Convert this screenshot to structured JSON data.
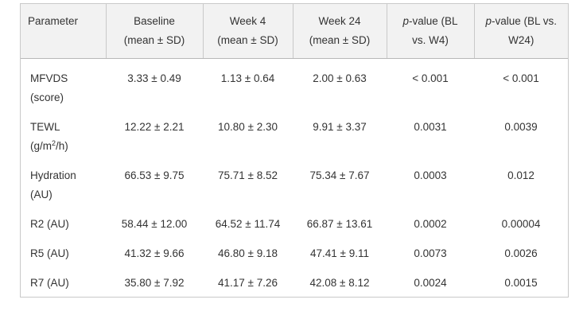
{
  "table": {
    "headers": [
      {
        "line1": "Parameter",
        "line2": ""
      },
      {
        "line1": "Baseline",
        "line2": "(mean ± SD)"
      },
      {
        "line1": "Week 4",
        "line2": "(mean ± SD)"
      },
      {
        "line1": "Week 24",
        "line2": "(mean ± SD)"
      },
      {
        "italic": "p",
        "line1": "-value (BL",
        "line2": "vs. W4)"
      },
      {
        "italic": "p",
        "line1": "-value (BL vs.",
        "line2": "W24)"
      }
    ],
    "rows": [
      {
        "param_line1": "MFVDS",
        "param_line2": "(score)",
        "baseline": "3.33 ± 0.49",
        "week4": "1.13 ± 0.64",
        "week24": "2.00 ± 0.63",
        "p_w4": "< 0.001",
        "p_w24": "< 0.001"
      },
      {
        "param_line1": "TEWL",
        "param_line2_pre": "(g/m",
        "param_line2_sup": "2",
        "param_line2_post": "/h)",
        "baseline": "12.22 ± 2.21",
        "week4": "10.80 ± 2.30",
        "week24": "9.91 ± 3.37",
        "p_w4": "0.0031",
        "p_w24": "0.0039"
      },
      {
        "param_line1": "Hydration",
        "param_line2": "(AU)",
        "baseline": "66.53 ± 9.75",
        "week4": "75.71 ± 8.52",
        "week24": "75.34 ± 7.67",
        "p_w4": "0.0003",
        "p_w24": "0.012"
      },
      {
        "param_line1": "R2 (AU)",
        "baseline": "58.44 ± 12.00",
        "week4": "64.52 ± 11.74",
        "week24": "66.87 ± 13.61",
        "p_w4": "0.0002",
        "p_w24": "0.00004"
      },
      {
        "param_line1": "R5 (AU)",
        "baseline": "41.32 ± 9.66",
        "week4": "46.80 ± 9.18",
        "week24": "47.41 ± 9.11",
        "p_w4": "0.0073",
        "p_w24": "0.0026"
      },
      {
        "param_line1": "R7 (AU)",
        "baseline": "35.80 ± 7.92",
        "week4": "41.17 ± 7.26",
        "week24": "42.08 ± 8.12",
        "p_w4": "0.0024",
        "p_w24": "0.0015"
      }
    ]
  },
  "colors": {
    "header_bg": "#f2f2f2",
    "border": "#c9c9c9",
    "text": "#333333"
  }
}
